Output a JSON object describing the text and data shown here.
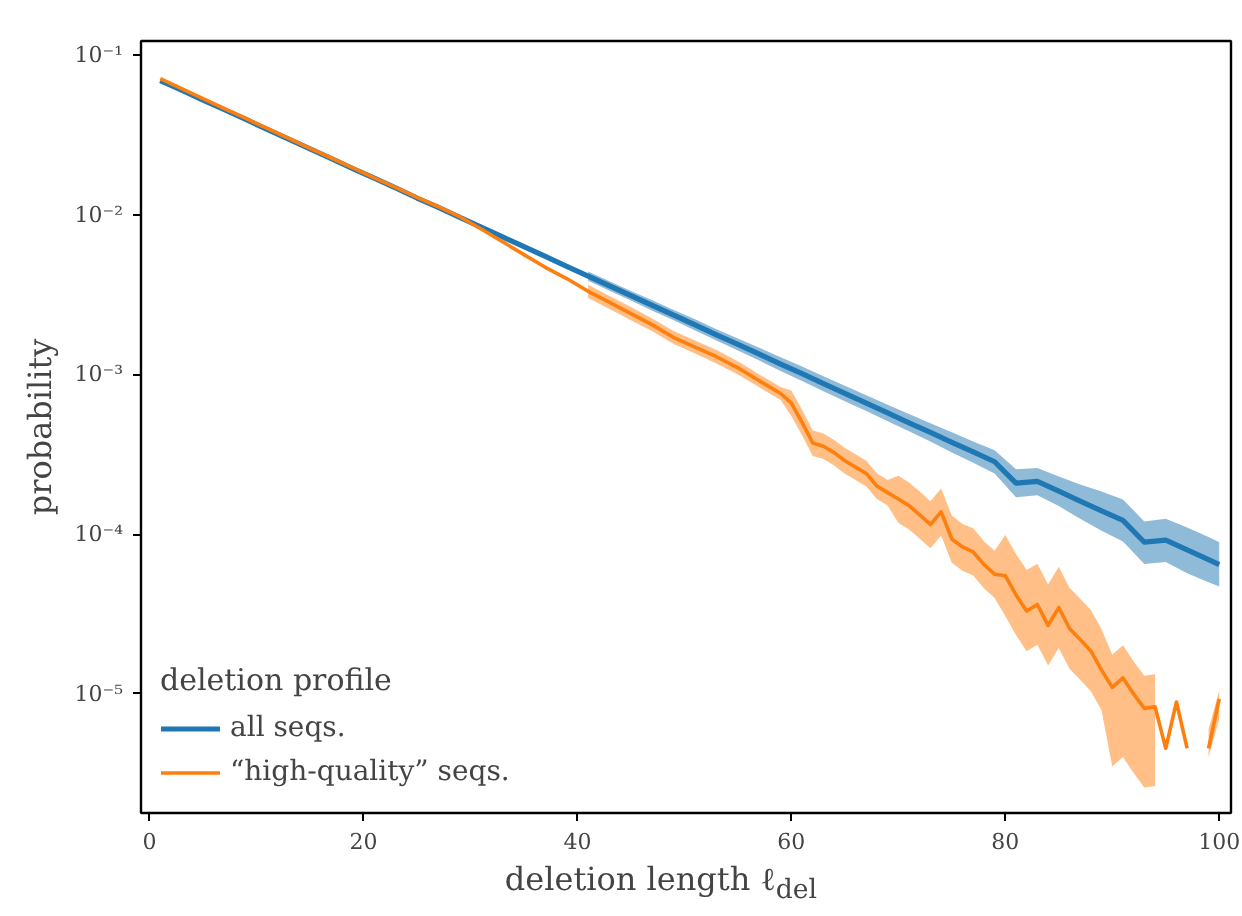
{
  "chart_data": {
    "type": "line",
    "xlabel": "deletion length ℓ$_{del}$",
    "ylabel": "probability",
    "legend_title": "deletion profile",
    "legend": "bottom left",
    "log": "y",
    "grid": false,
    "marker": "none",
    "line_style": "solid",
    "xlim": [
      -0.8,
      101.1
    ],
    "xticks": [
      0,
      20,
      40,
      60,
      80,
      100
    ],
    "ylim": [
      1.8e-06,
      0.122
    ],
    "yticks": [
      {
        "value": 1e-05,
        "label": "10⁻⁵"
      },
      {
        "value": 0.0001,
        "label": "10⁻⁴"
      },
      {
        "value": 0.001,
        "label": "10⁻³"
      },
      {
        "value": 0.01,
        "label": "10⁻²"
      },
      {
        "value": 0.1,
        "label": "10⁻¹"
      }
    ],
    "series": [
      {
        "name": "all seqs.",
        "color": "#1f77b4",
        "x": [
          1,
          3,
          5,
          7,
          9,
          11,
          13,
          15,
          17,
          19,
          21,
          23,
          25,
          27,
          29,
          31,
          33,
          35,
          37,
          39,
          41,
          43,
          45,
          47,
          49,
          51,
          53,
          55,
          57,
          59,
          61,
          63,
          65,
          67,
          69,
          71,
          73,
          75,
          77,
          79,
          81,
          83,
          85,
          87,
          89,
          91,
          93,
          95,
          97,
          99,
          100
        ],
        "values": [
          0.069,
          0.06,
          0.0521,
          0.0453,
          0.0394,
          0.0341,
          0.0297,
          0.0258,
          0.0224,
          0.0194,
          0.0169,
          0.0147,
          0.0127,
          0.0111,
          0.00962,
          0.00834,
          0.00725,
          0.0063,
          0.00547,
          0.00475,
          0.00412,
          0.00358,
          0.00311,
          0.0027,
          0.00235,
          0.00204,
          0.00177,
          0.00154,
          0.00134,
          0.00116,
          0.00101,
          0.000875,
          0.00076,
          0.000661,
          0.000574,
          0.000498,
          0.000433,
          0.000376,
          0.000327,
          0.000284,
          0.000209,
          0.000214,
          0.000186,
          0.000161,
          0.00014,
          0.000122,
          8.91e-05,
          9.18e-05,
          7.98e-05,
          6.93e-05,
          6.46e-05
        ],
        "lower": [
          null,
          null,
          null,
          null,
          null,
          null,
          null,
          null,
          null,
          null,
          null,
          null,
          null,
          null,
          null,
          null,
          null,
          null,
          null,
          null,
          0.00385,
          0.00334,
          0.0029,
          0.0025,
          0.00218,
          0.00188,
          0.00163,
          0.00141,
          0.00122,
          0.00105,
          0.00091,
          0.000785,
          0.00068,
          0.00059,
          0.00051,
          0.00044,
          0.00038,
          0.000325,
          0.00028,
          0.00024,
          0.00017,
          0.000175,
          0.00015,
          0.000125,
          0.000105,
          9e-05,
          6.5e-05,
          6.7e-05,
          5.7e-05,
          5e-05,
          4.7e-05
        ],
        "upper": [
          null,
          null,
          null,
          null,
          null,
          null,
          null,
          null,
          null,
          null,
          null,
          null,
          null,
          null,
          null,
          null,
          null,
          null,
          null,
          null,
          0.0044,
          0.00383,
          0.00333,
          0.00291,
          0.00253,
          0.00221,
          0.00192,
          0.00168,
          0.00147,
          0.00128,
          0.00112,
          0.000975,
          0.00085,
          0.00074,
          0.000645,
          0.000565,
          0.000495,
          0.000435,
          0.00038,
          0.000335,
          0.000255,
          0.00026,
          0.00023,
          0.000205,
          0.000185,
          0.000165,
          0.00012,
          0.000125,
          0.00011,
          9.6e-05,
          8.9e-05
        ]
      },
      {
        "name": "“high-quality” seqs.",
        "color": "#ff7f0e",
        "x": [
          1,
          3,
          5,
          7,
          9,
          11,
          13,
          15,
          17,
          19,
          21,
          23,
          25,
          27,
          29,
          31,
          33,
          35,
          37,
          39,
          41,
          43,
          45,
          47,
          49,
          51,
          53,
          55,
          57,
          59,
          60,
          61,
          62,
          63,
          64,
          65,
          66,
          67,
          68,
          69,
          70,
          71,
          72,
          73,
          74,
          75,
          76,
          77,
          78,
          79,
          80,
          81,
          82,
          83,
          84,
          85,
          86,
          87,
          88,
          89,
          90,
          91,
          92,
          93,
          94,
          95,
          96,
          97,
          98,
          99,
          100
        ],
        "values": [
          0.071,
          0.0615,
          0.0532,
          0.0461,
          0.04,
          0.0346,
          0.03,
          0.026,
          0.0226,
          0.0196,
          0.017,
          0.0148,
          0.0128,
          0.0112,
          0.0097,
          0.00813,
          0.00676,
          0.00562,
          0.00468,
          0.00398,
          0.00331,
          0.00282,
          0.0024,
          0.00204,
          0.0017,
          0.00148,
          0.00129,
          0.0011,
          0.000912,
          0.000759,
          0.000661,
          0.000501,
          0.000372,
          0.000355,
          0.000324,
          0.000288,
          0.000263,
          0.00024,
          0.0002,
          0.000182,
          0.000166,
          0.000151,
          0.000132,
          0.000115,
          0.000138,
          9.33e-05,
          8.32e-05,
          7.76e-05,
          6.46e-05,
          5.62e-05,
          5.5e-05,
          4.17e-05,
          3.31e-05,
          3.63e-05,
          2.69e-05,
          3.47e-05,
          2.57e-05,
          2.19e-05,
          1.86e-05,
          1.41e-05,
          1.1e-05,
          1.26e-05,
          1e-05,
          8.13e-06,
          8.32e-06,
          4.57e-06,
          8.91e-06,
          4.57e-06,
          null,
          4.57e-06,
          9.33e-06
        ],
        "lower": [
          null,
          null,
          null,
          null,
          null,
          null,
          null,
          null,
          null,
          null,
          null,
          null,
          null,
          null,
          null,
          null,
          null,
          null,
          null,
          null,
          0.00301,
          0.00257,
          0.00218,
          0.00186,
          0.00155,
          0.00135,
          0.00117,
          0.001,
          0.00083,
          0.000691,
          0.000549,
          0.000416,
          0.000309,
          0.000295,
          0.000269,
          0.000239,
          0.000218,
          0.000199,
          0.000166,
          0.000151,
          0.000118,
          0.000107,
          9.37e-05,
          8.17e-05,
          9.8e-05,
          6.62e-05,
          5.91e-05,
          5.51e-05,
          4.59e-05,
          3.99e-05,
          3.08e-05,
          2.34e-05,
          1.85e-05,
          2.03e-05,
          1.51e-05,
          1.94e-05,
          1.44e-05,
          1.23e-05,
          1.04e-05,
          7.9e-06,
          3.52e-06,
          4.03e-06,
          3.2e-06,
          2.6e-06,
          2.66e-06,
          null,
          null,
          null,
          null,
          4e-06,
          7e-06
        ],
        "upper": [
          null,
          null,
          null,
          null,
          null,
          null,
          null,
          null,
          null,
          null,
          null,
          null,
          null,
          null,
          null,
          null,
          null,
          null,
          null,
          null,
          0.00364,
          0.0031,
          0.00264,
          0.00224,
          0.00187,
          0.00163,
          0.00142,
          0.00121,
          0.001,
          0.000835,
          0.000793,
          0.000601,
          0.000446,
          0.000426,
          0.000389,
          0.000346,
          0.000316,
          0.000288,
          0.00024,
          0.000218,
          0.000232,
          0.000211,
          0.000185,
          0.000161,
          0.000193,
          0.000131,
          0.000116,
          0.000109,
          9.04e-05,
          7.87e-05,
          9.9e-05,
          7.51e-05,
          5.96e-05,
          6.53e-05,
          4.84e-05,
          6.25e-05,
          4.63e-05,
          3.94e-05,
          3.35e-05,
          2.54e-05,
          1.76e-05,
          2.02e-05,
          1.6e-05,
          1.3e-05,
          1.33e-05,
          null,
          null,
          null,
          null,
          6e-06,
          1.05e-05
        ]
      }
    ]
  }
}
